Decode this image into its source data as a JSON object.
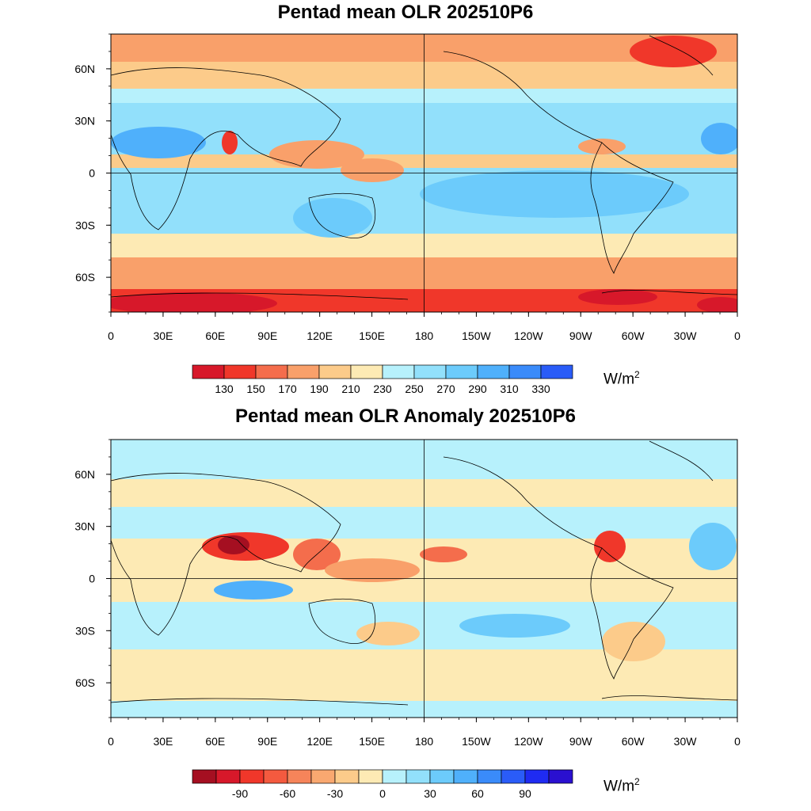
{
  "panels": [
    {
      "title": "Pentad mean OLR 202510P6",
      "units_base": "W/m",
      "units_exp": "2",
      "lat_labels": [
        "60N",
        "30N",
        "0",
        "30S",
        "60S"
      ],
      "lon_labels": [
        "0",
        "30E",
        "60E",
        "90E",
        "120E",
        "150E",
        "180",
        "150W",
        "120W",
        "90W",
        "60W",
        "30W",
        "0"
      ],
      "colorbar": {
        "colors": [
          "#d7182a",
          "#f0372a",
          "#f46d4c",
          "#f9a06a",
          "#fccb8a",
          "#fdeab4",
          "#b7f1fc",
          "#92e0fb",
          "#6ccbfb",
          "#4fb0fb",
          "#3a8bfa",
          "#2a5cf8"
        ],
        "labels": [
          "130",
          "150",
          "170",
          "190",
          "210",
          "230",
          "250",
          "270",
          "290",
          "310",
          "330"
        ]
      }
    },
    {
      "title": "Pentad mean OLR Anomaly 202510P6",
      "units_base": "W/m",
      "units_exp": "2",
      "lat_labels": [
        "60N",
        "30N",
        "0",
        "30S",
        "60S"
      ],
      "lon_labels": [
        "0",
        "30E",
        "60E",
        "90E",
        "120E",
        "150E",
        "180",
        "150W",
        "120W",
        "90W",
        "60W",
        "30W",
        "0"
      ],
      "colorbar": {
        "colors": [
          "#a50f21",
          "#d7182a",
          "#f0372a",
          "#f45a3f",
          "#f6845a",
          "#f9a870",
          "#fccb8a",
          "#fdeab4",
          "#b7f1fc",
          "#92e0fb",
          "#6ccbfb",
          "#4fb0fb",
          "#3a8bfa",
          "#2a5cf8",
          "#1f2bf2",
          "#2a10d0"
        ],
        "labels": [
          "-90",
          "-60",
          "-30",
          "0",
          "30",
          "60",
          "90"
        ]
      }
    }
  ]
}
